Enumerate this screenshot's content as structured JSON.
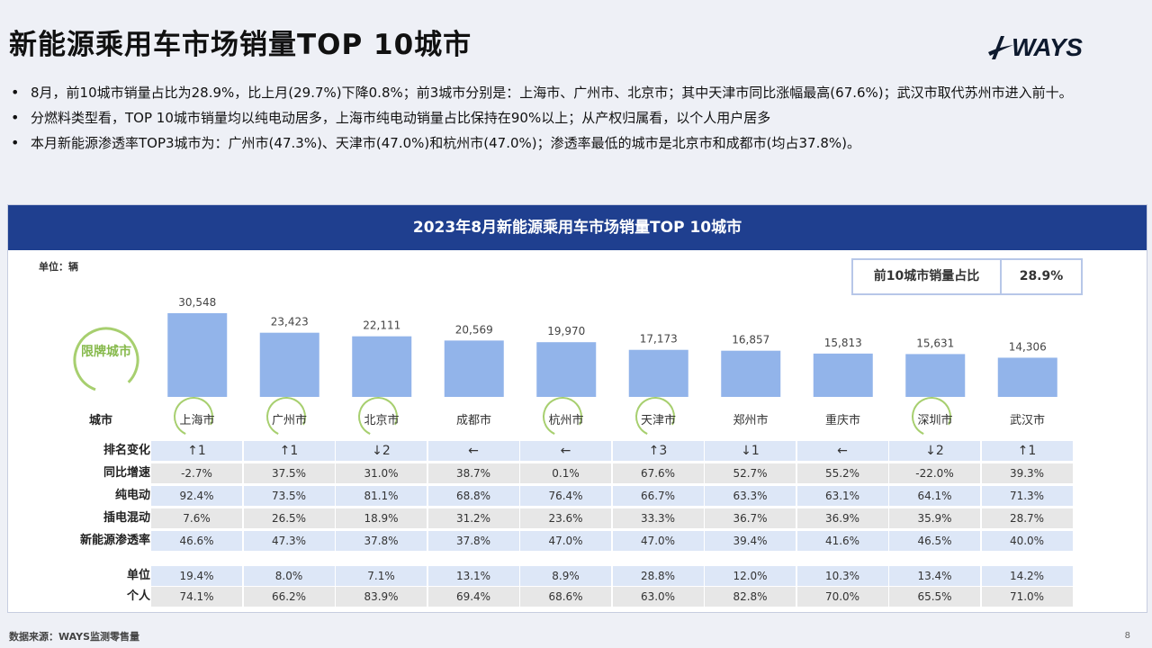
{
  "page": {
    "title": "新能源乘用车市场销量TOP 10城市",
    "logo_text": "WAYS",
    "bullets": [
      "8月，前10城市销量占比为28.9%，比上月(29.7%)下降0.8%；前3城市分别是：上海市、广州市、北京市；其中天津市同比涨幅最高(67.6%)；武汉市取代苏州市进入前十。",
      "分燃料类型看，TOP 10城市销量均以纯电动居多，上海市纯电动销量占比保持在90%以上；从产权归属看，以个人用户居多",
      "本月新能源渗透率TOP3城市为：广州市(47.3%)、天津市(47.0%)和杭州市(47.0%)；渗透率最低的城市是北京市和成都市(均占37.8%)。"
    ],
    "footer_source": "数据来源：WAYS监测零售量",
    "page_number": "8"
  },
  "chart_data": {
    "type": "bar",
    "title": "2023年8月新能源乘用车市场销量TOP 10城市",
    "unit_label": "单位：辆",
    "top10_share_label": "前10城市销量占比",
    "top10_share_value": "28.9%",
    "badge_text": "限牌城市",
    "categories_label": "城市",
    "categories": [
      "上海市",
      "广州市",
      "北京市",
      "成都市",
      "杭州市",
      "天津市",
      "郑州市",
      "重庆市",
      "深圳市",
      "武汉市"
    ],
    "restricted_cities": [
      "上海市",
      "广州市",
      "北京市",
      "杭州市",
      "天津市",
      "深圳市"
    ],
    "values": [
      30548,
      23423,
      22111,
      20569,
      19970,
      17173,
      16857,
      15813,
      15631,
      14306
    ],
    "value_labels": [
      "30,548",
      "23,423",
      "22,111",
      "20,569",
      "19,970",
      "17,173",
      "16,857",
      "15,813",
      "15,631",
      "14,306"
    ],
    "ylim": [
      0,
      32000
    ],
    "bar_color": "#92b4ea",
    "table_rows": [
      {
        "label": "排名变化",
        "style": "blue",
        "values": [
          "↑1",
          "↑1",
          "↓2",
          "←",
          "←",
          "↑3",
          "↓1",
          "←",
          "↓2",
          "↑1"
        ]
      },
      {
        "label": "同比增速",
        "style": "gray",
        "values": [
          "-2.7%",
          "37.5%",
          "31.0%",
          "38.7%",
          "0.1%",
          "67.6%",
          "52.7%",
          "55.2%",
          "-22.0%",
          "39.3%"
        ]
      },
      {
        "label": "纯电动",
        "style": "blue",
        "values": [
          "92.4%",
          "73.5%",
          "81.1%",
          "68.8%",
          "76.4%",
          "66.7%",
          "63.3%",
          "63.1%",
          "64.1%",
          "71.3%"
        ]
      },
      {
        "label": "插电混动",
        "style": "gray",
        "values": [
          "7.6%",
          "26.5%",
          "18.9%",
          "31.2%",
          "23.6%",
          "33.3%",
          "36.7%",
          "36.9%",
          "35.9%",
          "28.7%"
        ]
      },
      {
        "label": "新能源渗透率",
        "style": "blue",
        "values": [
          "46.6%",
          "47.3%",
          "37.8%",
          "37.8%",
          "47.0%",
          "47.0%",
          "39.4%",
          "41.6%",
          "46.5%",
          "40.0%"
        ]
      },
      {
        "label": "单位",
        "style": "blue",
        "values": [
          "19.4%",
          "8.0%",
          "7.1%",
          "13.1%",
          "8.9%",
          "28.8%",
          "12.0%",
          "10.3%",
          "13.4%",
          "14.2%"
        ]
      },
      {
        "label": "个人",
        "style": "gray",
        "values": [
          "74.1%",
          "66.2%",
          "83.9%",
          "69.4%",
          "68.6%",
          "63.0%",
          "82.8%",
          "70.0%",
          "65.5%",
          "71.0%"
        ]
      }
    ]
  }
}
